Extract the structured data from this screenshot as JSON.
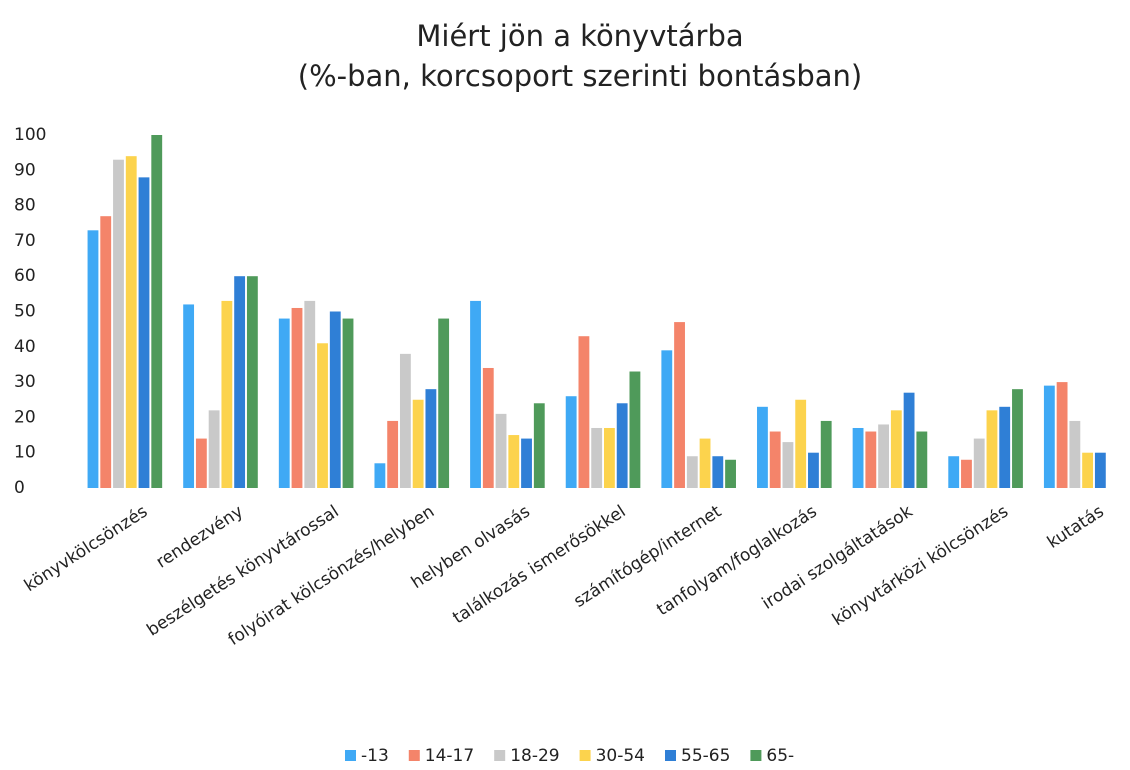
{
  "chart_data": {
    "type": "bar",
    "title": "Miért jön a könyvtárba",
    "subtitle": "(%-ban, korcsoport szerinti bontásban)",
    "categories": [
      "könyvkölcsönzés",
      "rendezvény",
      "beszélgetés könyvtárossal",
      "folyóirat kölcsönzés/helyben",
      "helyben olvasás",
      "találkozás ismerősökkel",
      "számítógép/internet",
      "tanfolyam/foglalkozás",
      "irodai szolgáltatások",
      "könyvtárközi kölcsönzés",
      "kutatás"
    ],
    "series": [
      {
        "name": "-13",
        "color": "#3fa9f5",
        "values": [
          73,
          52,
          48,
          7,
          53,
          26,
          39,
          23,
          17,
          9,
          29
        ]
      },
      {
        "name": "14-17",
        "color": "#f4846a",
        "values": [
          77,
          14,
          51,
          19,
          34,
          43,
          47,
          16,
          16,
          8,
          30
        ]
      },
      {
        "name": "18-29",
        "color": "#c9c9c9",
        "values": [
          93,
          22,
          53,
          38,
          21,
          17,
          9,
          13,
          18,
          14,
          19
        ]
      },
      {
        "name": "30-54",
        "color": "#fcd34d",
        "values": [
          94,
          53,
          41,
          25,
          15,
          17,
          14,
          25,
          22,
          22,
          10
        ]
      },
      {
        "name": "55-65",
        "color": "#2f7fd6",
        "values": [
          88,
          60,
          50,
          28,
          14,
          24,
          9,
          10,
          27,
          23,
          10
        ]
      },
      {
        "name": "65-",
        "color": "#4f9a5a",
        "values": [
          100,
          60,
          48,
          48,
          24,
          33,
          8,
          19,
          16,
          28,
          null
        ]
      }
    ],
    "ylim": [
      0,
      100
    ],
    "yticks": [
      0,
      10,
      20,
      30,
      40,
      50,
      60,
      70,
      80,
      90,
      100
    ],
    "grid": false,
    "legend": "bottom"
  }
}
